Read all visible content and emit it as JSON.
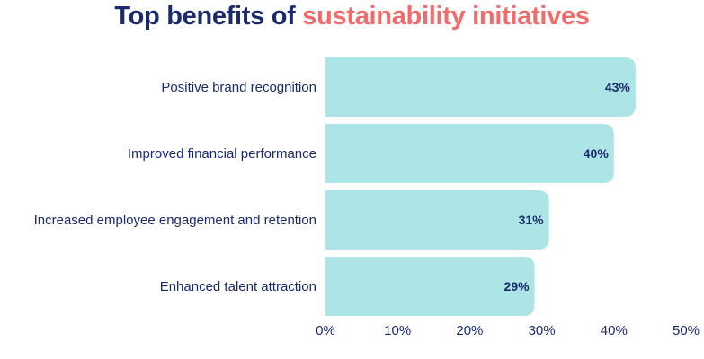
{
  "title": {
    "part1": "Top benefits of ",
    "part2": "sustainability initiatives"
  },
  "colors": {
    "title_primary": "#1a2a6e",
    "title_accent": "#f26a6a",
    "bar": "#ade5e7",
    "text": "#1a2a6e"
  },
  "chart_data": {
    "type": "bar",
    "orientation": "horizontal",
    "title": "Top benefits of sustainability initiatives",
    "categories": [
      "Positive brand recognition",
      "Improved financial performance",
      "Increased employee engagement and retention",
      "Enhanced talent attraction"
    ],
    "values": [
      43,
      40,
      31,
      29
    ],
    "value_labels": [
      "43%",
      "40%",
      "31%",
      "29%"
    ],
    "xlim": [
      0,
      50
    ],
    "ticks": [
      0,
      10,
      20,
      30,
      40,
      50
    ],
    "tick_labels": [
      "0%",
      "10%",
      "20%",
      "30%",
      "40%",
      "50%"
    ],
    "xlabel": "",
    "ylabel": "",
    "grid": false,
    "legend": "none"
  }
}
